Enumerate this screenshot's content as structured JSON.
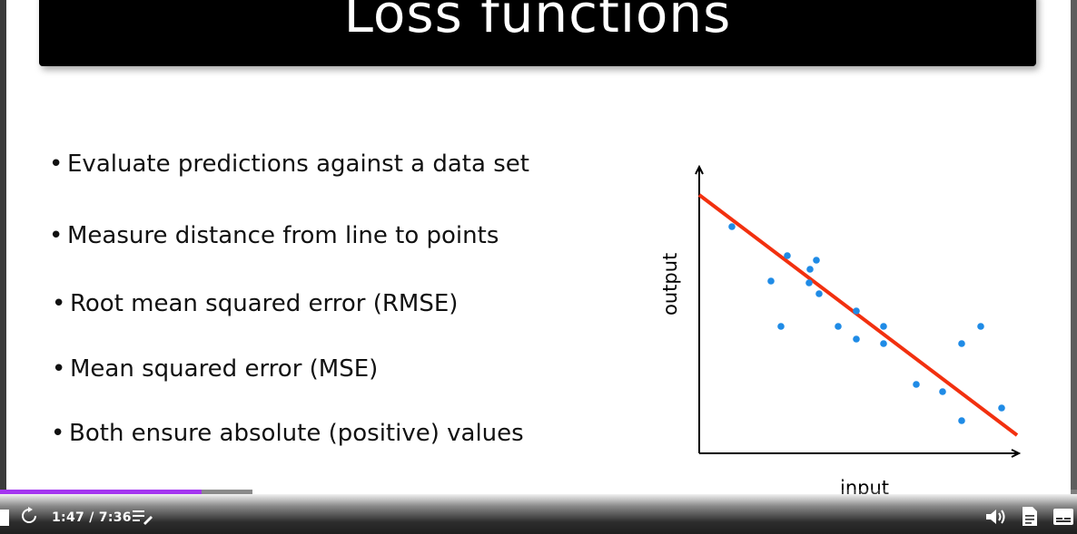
{
  "slide": {
    "title": "Loss functions",
    "bullets": [
      "Evaluate predictions against a data set",
      "Measure distance from line to points",
      "Root mean squared error (RMSE)",
      "Mean squared error (MSE)",
      "Both ensure absolute (positive) values"
    ],
    "bullet_marker": "•"
  },
  "chart_data": {
    "type": "scatter",
    "xlabel": "input",
    "ylabel": "output",
    "grid": false,
    "xlim": [
      0,
      350
    ],
    "ylim": [
      0,
      285
    ],
    "points": [
      [
        36,
        250
      ],
      [
        79,
        190
      ],
      [
        90,
        140
      ],
      [
        97,
        218
      ],
      [
        121,
        188
      ],
      [
        122,
        203
      ],
      [
        129,
        213
      ],
      [
        132,
        176
      ],
      [
        153,
        140
      ],
      [
        173,
        157
      ],
      [
        173,
        126
      ],
      [
        203,
        140
      ],
      [
        203,
        121
      ],
      [
        239,
        76
      ],
      [
        268,
        68
      ],
      [
        289,
        36
      ],
      [
        289,
        121
      ],
      [
        310,
        140
      ],
      [
        333,
        50
      ]
    ],
    "point_color": "#1f8be6",
    "fit_line": {
      "x": [
        0,
        350
      ],
      "y": [
        285,
        20
      ],
      "color": "#f2300f"
    }
  },
  "player": {
    "time": "1:47 / 7:36",
    "progress": 0.187,
    "buffered": 0.234,
    "accent": "#a435f0"
  }
}
